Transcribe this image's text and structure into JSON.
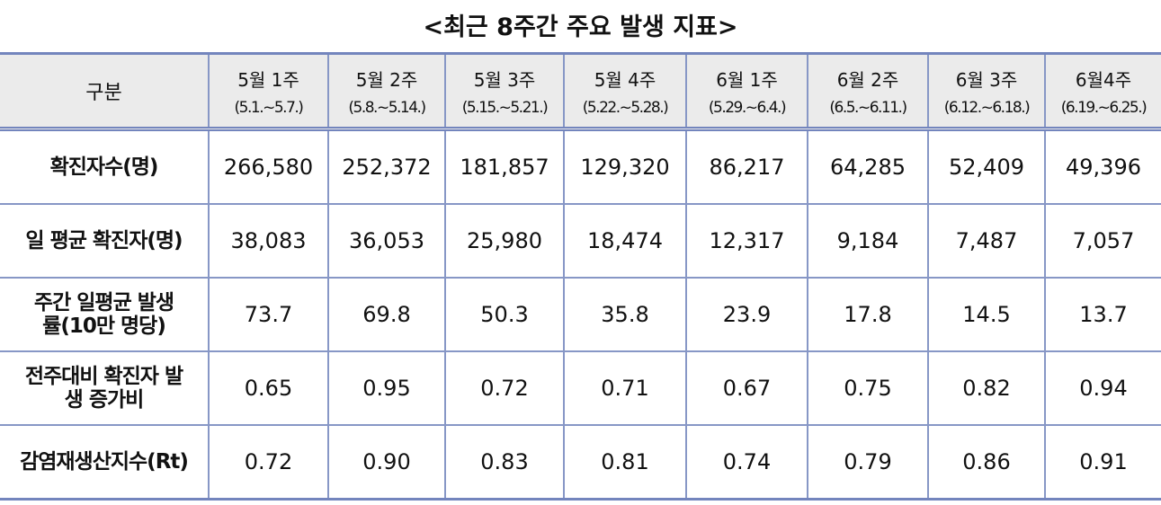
{
  "title": "<최근 8주간 주요 발생 지표>",
  "table": {
    "corner": "구분",
    "columns": [
      {
        "week": "5월 1주",
        "period": "(5.1.~5.7.)"
      },
      {
        "week": "5월 2주",
        "period": "(5.8.~5.14.)"
      },
      {
        "week": "5월 3주",
        "period": "(5.15.~5.21.)"
      },
      {
        "week": "5월 4주",
        "period": "(5.22.~5.28.)"
      },
      {
        "week": "6월 1주",
        "period": "(5.29.~6.4.)"
      },
      {
        "week": "6월 2주",
        "period": "(6.5.~6.11.)"
      },
      {
        "week": "6월 3주",
        "period": "(6.12.~6.18.)"
      },
      {
        "week": "6월4주",
        "period": "(6.19.~6.25.)"
      }
    ],
    "rows": [
      {
        "label": [
          "확진자수(명)"
        ],
        "values": [
          "266,580",
          "252,372",
          "181,857",
          "129,320",
          "86,217",
          "64,285",
          "52,409",
          "49,396"
        ]
      },
      {
        "label": [
          "일 평균 확진자(명)"
        ],
        "values": [
          "38,083",
          "36,053",
          "25,980",
          "18,474",
          "12,317",
          "9,184",
          "7,487",
          "7,057"
        ]
      },
      {
        "label": [
          "주간 일평균 발생",
          "률(10만 명당)"
        ],
        "values": [
          "73.7",
          "69.8",
          "50.3",
          "35.8",
          "23.9",
          "17.8",
          "14.5",
          "13.7"
        ]
      },
      {
        "label": [
          "전주대비 확진자 발",
          "생 증가비"
        ],
        "values": [
          "0.65",
          "0.95",
          "0.72",
          "0.71",
          "0.67",
          "0.75",
          "0.82",
          "0.94"
        ]
      },
      {
        "label": [
          "감염재생산지수(Rt)"
        ],
        "values": [
          "0.72",
          "0.90",
          "0.83",
          "0.81",
          "0.74",
          "0.79",
          "0.86",
          "0.91"
        ]
      }
    ]
  }
}
